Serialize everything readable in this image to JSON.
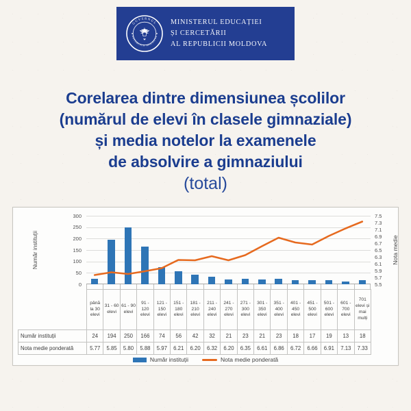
{
  "page": {
    "background": "#f6f3ee"
  },
  "header": {
    "line1": "MINISTERUL EDUCAȚIEI",
    "line2": "ȘI CERCETĂRII",
    "line3": "AL REPUBLICII MOLDOVA",
    "seal_top_text": "GUVERNUL",
    "seal_bottom_text": "REPUBLICII MOLDOVA",
    "bg_color": "#233e92",
    "text_color": "#f4f6fb"
  },
  "title": {
    "line1": "Corelarea dintre dimensiunea școlilor",
    "line2": "(numărul de elevi în clasele gimnaziale)",
    "line3": "și media notelor la examenele",
    "line4": "de absolvire a gimnaziului",
    "color": "#1b3d8f"
  },
  "subtitle": "(total)",
  "chart_data": {
    "type": "combo",
    "categories": [
      "până la 30 elevi",
      "31 - 60 elevi",
      "61 - 90 elevi",
      "91 - 120 elevi",
      "121 - 150 elevi",
      "151 - 180 elevi",
      "181 - 210 elevi",
      "211 - 240 elevi",
      "241 - 270 elevi",
      "271 - 300 elevi",
      "301 - 350 elevi",
      "351 - 400 elevi",
      "401 - 450 elevi",
      "451 - 500 elevi",
      "501 - 600 elevi",
      "601 - 700 elevi",
      "701 elevi și mai mulți"
    ],
    "series": [
      {
        "name": "Număr instituții",
        "type": "bar",
        "axis": "left",
        "color": "#2e75b6",
        "values": [
          24,
          194,
          250,
          166,
          74,
          56,
          42,
          32,
          21,
          23,
          21,
          23,
          18,
          17,
          19,
          13,
          18
        ]
      },
      {
        "name": "Nota medie ponderată",
        "type": "line",
        "axis": "right",
        "color": "#e66a1f",
        "values": [
          5.77,
          5.85,
          5.8,
          5.88,
          5.97,
          6.21,
          6.2,
          6.32,
          6.2,
          6.35,
          6.61,
          6.86,
          6.72,
          6.66,
          6.91,
          7.13,
          7.33
        ]
      }
    ],
    "left_axis": {
      "label": "Număr instituții",
      "min": 0,
      "max": 300,
      "step": 50,
      "ticks": [
        300,
        250,
        200,
        150,
        100,
        50,
        0
      ]
    },
    "right_axis": {
      "label": "Nota medie",
      "min": 5.5,
      "max": 7.5,
      "step": 0.2,
      "ticks": [
        7.5,
        7.3,
        7.1,
        6.9,
        6.7,
        6.5,
        6.3,
        6.1,
        5.9,
        5.7,
        5.5
      ]
    },
    "grid": true,
    "legend_position": "bottom",
    "data_table": true
  }
}
